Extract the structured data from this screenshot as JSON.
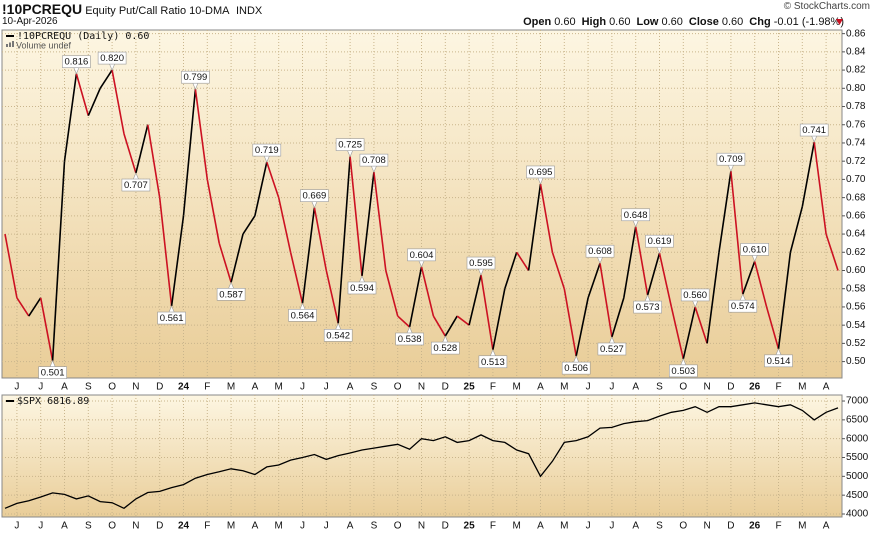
{
  "header": {
    "symbol": "!10PCREQU",
    "name": "Equity Put/Call Ratio 10-DMA",
    "exchange": "INDX",
    "date": "10-Apr-2026",
    "quote": [
      {
        "label": "Open",
        "value": "0.60"
      },
      {
        "label": "High",
        "value": "0.60"
      },
      {
        "label": "Low",
        "value": "0.60"
      },
      {
        "label": "Close",
        "value": "0.60"
      },
      {
        "label": "Chg",
        "value": "-0.01 (-1.98%)"
      }
    ],
    "watermark": "© StockCharts.com"
  },
  "chart_data": [
    {
      "type": "line",
      "volume_note": "Volume undef",
      "grid": true,
      "categories": [
        null,
        "J",
        null,
        "J",
        null,
        "A",
        null,
        "S",
        null,
        "O",
        null,
        "N",
        null,
        "D",
        null,
        "24",
        null,
        "F",
        null,
        "M",
        null,
        "A",
        null,
        "M",
        null,
        "J",
        null,
        "J",
        null,
        "A",
        null,
        "S",
        null,
        "O",
        null,
        "N",
        null,
        "D",
        null,
        "25",
        null,
        "F",
        null,
        "M",
        null,
        "A",
        null,
        "M",
        null,
        "J",
        null,
        "J",
        null,
        "A",
        null,
        "S",
        null,
        "O",
        null,
        "N",
        null,
        "D",
        null,
        "26",
        null,
        "F",
        null,
        "M",
        null,
        "A",
        null
      ],
      "series": [
        {
          "name": "!10PCREQU (Daily) 0.60",
          "up_color": "#000000",
          "down_color": "#cc1122",
          "values": [
            0.64,
            0.57,
            0.55,
            0.57,
            0.501,
            0.72,
            0.816,
            0.77,
            0.8,
            0.82,
            0.75,
            0.707,
            0.76,
            0.68,
            0.561,
            0.66,
            0.799,
            0.7,
            0.63,
            0.587,
            0.64,
            0.66,
            0.719,
            0.68,
            0.62,
            0.564,
            0.669,
            0.6,
            0.542,
            0.725,
            0.594,
            0.708,
            0.6,
            0.55,
            0.538,
            0.604,
            0.55,
            0.528,
            0.55,
            0.54,
            0.595,
            0.513,
            0.58,
            0.62,
            0.6,
            0.695,
            0.62,
            0.58,
            0.506,
            0.57,
            0.608,
            0.527,
            0.57,
            0.648,
            0.573,
            0.619,
            0.56,
            0.503,
            0.56,
            0.52,
            0.62,
            0.709,
            0.574,
            0.61,
            0.56,
            0.514,
            0.62,
            0.67,
            0.741,
            0.64,
            0.6
          ],
          "value_labels": [
            null,
            null,
            null,
            null,
            "0.501",
            null,
            "0.816",
            null,
            null,
            "0.820",
            null,
            "0.707",
            null,
            null,
            "0.561",
            null,
            "0.799",
            null,
            null,
            "0.587",
            null,
            null,
            "0.719",
            null,
            null,
            "0.564",
            "0.669",
            null,
            "0.542",
            "0.725",
            "0.594",
            "0.708",
            null,
            null,
            "0.538",
            "0.604",
            null,
            "0.528",
            null,
            null,
            "0.595",
            "0.513",
            null,
            null,
            null,
            "0.695",
            null,
            null,
            "0.506",
            null,
            "0.608",
            "0.527",
            null,
            "0.648",
            "0.573",
            "0.619",
            null,
            "0.503",
            "0.560",
            null,
            null,
            "0.709",
            "0.574",
            "0.610",
            null,
            "0.514",
            null,
            null,
            "0.741",
            null,
            null
          ]
        }
      ],
      "ylim": [
        0.482,
        0.864
      ],
      "yticks": [
        {
          "value": 0.5,
          "label": "0.50"
        },
        0.52,
        0.54,
        0.56,
        0.58,
        {
          "value": 0.6,
          "label": "0.60"
        },
        0.62,
        0.64,
        0.66,
        0.68,
        {
          "value": 0.7,
          "label": "0.70"
        },
        0.72,
        0.74,
        0.76,
        0.78,
        {
          "value": 0.8,
          "label": "0.80"
        },
        0.82,
        0.84,
        0.86
      ]
    },
    {
      "type": "line",
      "grid": true,
      "categories": [
        null,
        "J",
        null,
        "J",
        null,
        "A",
        null,
        "S",
        null,
        "O",
        null,
        "N",
        null,
        "D",
        null,
        "24",
        null,
        "F",
        null,
        "M",
        null,
        "A",
        null,
        "M",
        null,
        "J",
        null,
        "J",
        null,
        "A",
        null,
        "S",
        null,
        "O",
        null,
        "N",
        null,
        "D",
        null,
        "25",
        null,
        "F",
        null,
        "M",
        null,
        "A",
        null,
        "M",
        null,
        "J",
        null,
        "J",
        null,
        "A",
        null,
        "S",
        null,
        "O",
        null,
        "N",
        null,
        "D",
        null,
        "26",
        null,
        "F",
        null,
        "M",
        null,
        "A",
        null
      ],
      "series": [
        {
          "name": "$SPX 6816.89",
          "color": "#000000",
          "values": [
            4150,
            4280,
            4350,
            4450,
            4560,
            4520,
            4400,
            4480,
            4330,
            4300,
            4150,
            4400,
            4570,
            4600,
            4700,
            4780,
            4950,
            5050,
            5120,
            5200,
            5150,
            5050,
            5250,
            5300,
            5430,
            5500,
            5580,
            5450,
            5550,
            5620,
            5700,
            5750,
            5800,
            5850,
            5720,
            6000,
            5950,
            6050,
            5900,
            5950,
            6100,
            5950,
            5900,
            5700,
            5600,
            5000,
            5400,
            5900,
            5950,
            6050,
            6280,
            6300,
            6400,
            6450,
            6480,
            6600,
            6700,
            6750,
            6850,
            6700,
            6850,
            6850,
            6900,
            6950,
            6900,
            6850,
            6900,
            6750,
            6500,
            6700,
            6816.89
          ]
        }
      ],
      "ylim": [
        3920,
        7160
      ],
      "yticks": [
        4000,
        4500,
        5000,
        5500,
        6000,
        6500,
        7000
      ]
    }
  ]
}
